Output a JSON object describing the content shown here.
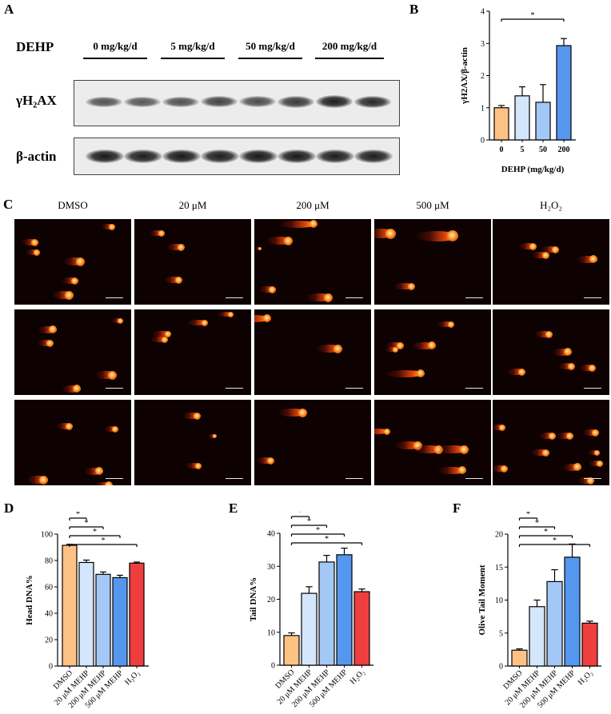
{
  "panel_A": {
    "letter": "A",
    "treatment_label": "DEHP",
    "doses": [
      "0 mg/kg/d",
      "5 mg/kg/d",
      "50 mg/kg/d",
      "200 mg/kg/d"
    ],
    "blot_labels": [
      "γH₂AX",
      "β-actin"
    ],
    "band_intensity_gh2ax": [
      0.5,
      0.48,
      0.52,
      0.62,
      0.55,
      0.68,
      0.88,
      0.8
    ],
    "band_intensity_actin": [
      0.9,
      0.88,
      0.9,
      0.88,
      0.9,
      0.9,
      0.88,
      0.88
    ]
  },
  "panel_C": {
    "letter": "C",
    "columns": [
      "DMSO",
      "20 μM",
      "200 μM",
      "500 μM",
      "H₂O₂"
    ]
  },
  "chart_data": [
    {
      "panel": "B",
      "type": "bar",
      "categories": [
        "0",
        "5",
        "50",
        "200"
      ],
      "values": [
        1.0,
        1.37,
        1.17,
        2.93
      ],
      "errors": [
        0.07,
        0.28,
        0.55,
        0.22
      ],
      "colors": [
        "#ffc285",
        "#d4e6fb",
        "#a4c8f6",
        "#5597ee"
      ],
      "xlabel": "DEHP (mg/kg/d)",
      "ylabel": "γH2AX/β-actin",
      "ylim": [
        0,
        4
      ],
      "yticks": [
        0,
        1,
        2,
        3,
        4
      ],
      "significance": [
        {
          "from": 0,
          "to": 3,
          "label": "*"
        }
      ]
    },
    {
      "panel": "D",
      "type": "bar",
      "categories": [
        "DMSO",
        "20 μM MEHP",
        "200 μM MEHP",
        "500 μM MEHP",
        "H₂O₂"
      ],
      "values": [
        91.5,
        78.5,
        69.5,
        67.0,
        78.0
      ],
      "errors": [
        0.8,
        1.8,
        1.8,
        1.8,
        0.8
      ],
      "colors": [
        "#ffc285",
        "#d4e6fb",
        "#a4c8f6",
        "#5597ee",
        "#ee3e3e"
      ],
      "xlabel": "",
      "ylabel": "Head DNA%",
      "ylim": [
        0,
        100
      ],
      "yticks": [
        0,
        20,
        40,
        60,
        80,
        100
      ],
      "significance": [
        {
          "from": 0,
          "to": 1,
          "label": "*"
        },
        {
          "from": 0,
          "to": 2,
          "label": "*"
        },
        {
          "from": 0,
          "to": 3,
          "label": "*"
        },
        {
          "from": 0,
          "to": 4,
          "label": "*"
        }
      ]
    },
    {
      "panel": "E",
      "type": "bar",
      "categories": [
        "DMSO",
        "20 μM MEHP",
        "200 μM MEHP",
        "500 μM MEHP",
        "H₂O₂"
      ],
      "values": [
        9.0,
        21.8,
        31.3,
        33.5,
        22.3
      ],
      "errors": [
        0.8,
        2.0,
        2.0,
        2.0,
        0.8
      ],
      "colors": [
        "#ffc285",
        "#d4e6fb",
        "#a4c8f6",
        "#5597ee",
        "#ee3e3e"
      ],
      "xlabel": "",
      "ylabel": "Tail DNA%",
      "ylim": [
        0,
        40
      ],
      "yticks": [
        0,
        10,
        20,
        30,
        40
      ],
      "significance": [
        {
          "from": 0,
          "to": 1,
          "label": "*"
        },
        {
          "from": 0,
          "to": 2,
          "label": "*"
        },
        {
          "from": 0,
          "to": 3,
          "label": "*"
        },
        {
          "from": 0,
          "to": 4,
          "label": "*"
        }
      ]
    },
    {
      "panel": "F",
      "type": "bar",
      "categories": [
        "DMSO",
        "20 μM MEHP",
        "200 μM MEHP",
        "500 μM MEHP",
        "H₂O₂"
      ],
      "values": [
        2.4,
        9.0,
        12.8,
        16.5,
        6.5
      ],
      "errors": [
        0.2,
        1.0,
        1.8,
        2.0,
        0.3
      ],
      "colors": [
        "#ffc285",
        "#d4e6fb",
        "#a4c8f6",
        "#5597ee",
        "#ee3e3e"
      ],
      "xlabel": "",
      "ylabel": "Olive Tail Moment",
      "ylim": [
        0,
        20
      ],
      "yticks": [
        0,
        5,
        10,
        15,
        20
      ],
      "significance": [
        {
          "from": 0,
          "to": 1,
          "label": "*"
        },
        {
          "from": 0,
          "to": 2,
          "label": "*"
        },
        {
          "from": 0,
          "to": 3,
          "label": "*"
        },
        {
          "from": 0,
          "to": 4,
          "label": "*"
        }
      ]
    }
  ]
}
